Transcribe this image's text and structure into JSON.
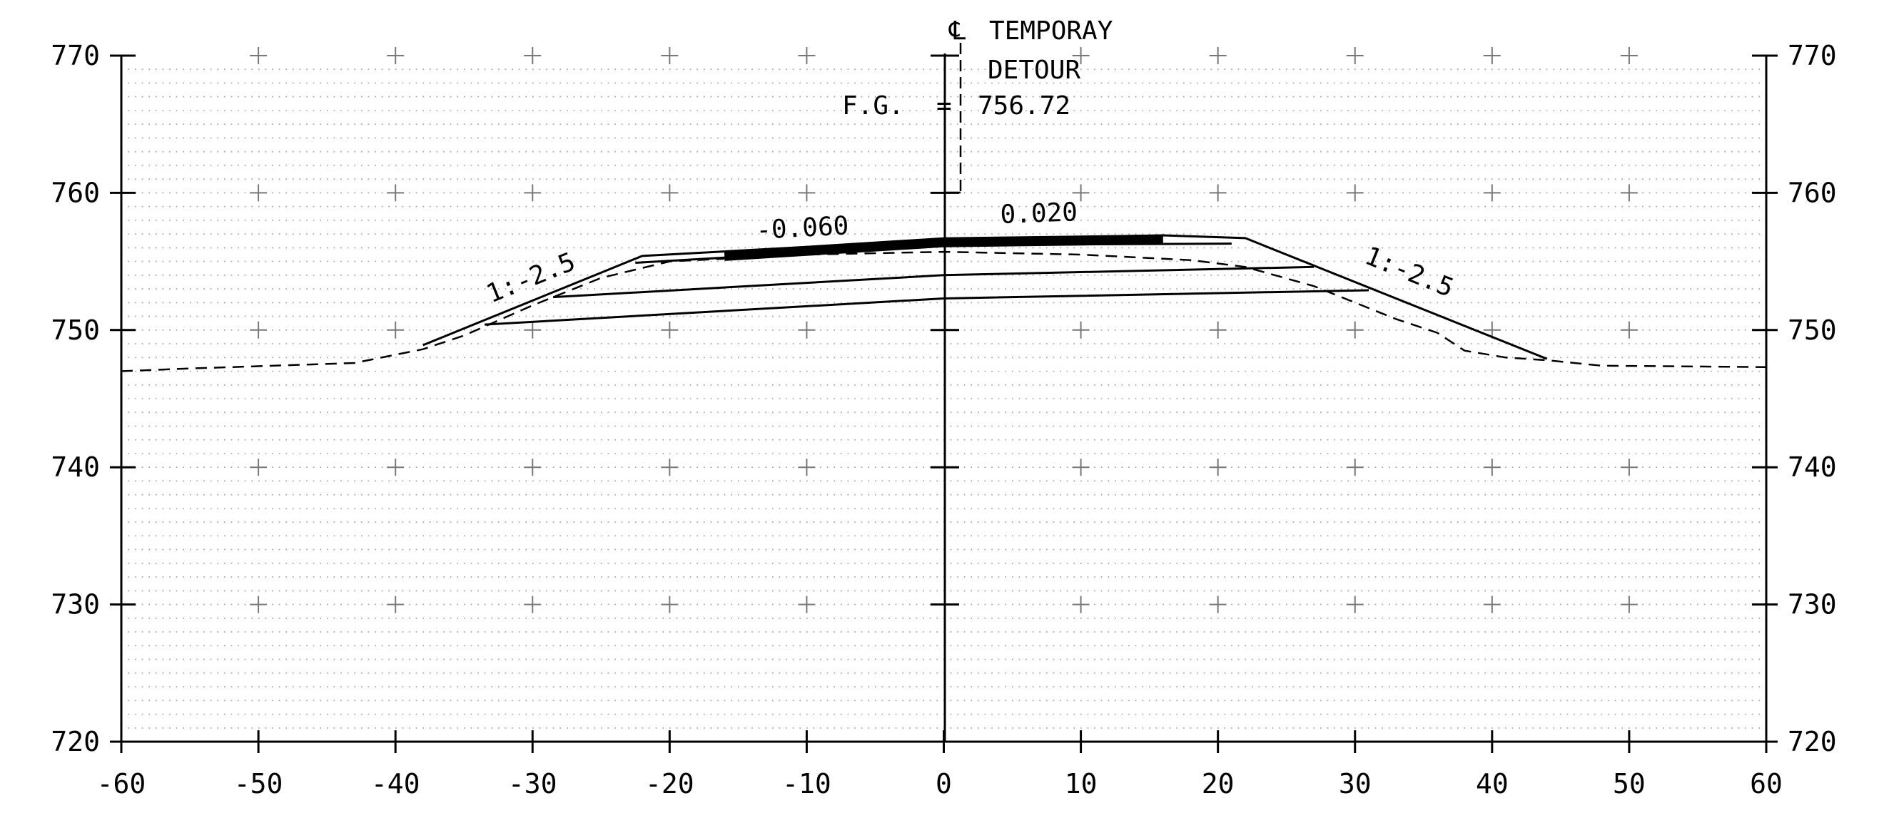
{
  "section": {
    "centerline_symbol": "℄",
    "centerline_label_1": "TEMPORAY",
    "centerline_label_2": "DETOUR",
    "fg_label": "F.G.",
    "fg_equals": "=",
    "fg_value": "756.72",
    "slope_left": "1:-2.5",
    "slope_right": "1:-2.5",
    "cross_slope_left": "-0.060",
    "cross_slope_right": "0.020"
  },
  "axes": {
    "x_ticks": [
      -60,
      -50,
      -40,
      -30,
      -20,
      -10,
      0,
      10,
      20,
      30,
      40,
      50,
      60
    ],
    "x_tick_labels": [
      "-60",
      "-50",
      "-40",
      "-30",
      "-20",
      "-10",
      "0",
      "10",
      "20",
      "30",
      "40",
      "50",
      "60"
    ],
    "y_ticks": [
      720,
      730,
      740,
      750,
      760,
      770
    ],
    "y_tick_labels": [
      "720",
      "730",
      "740",
      "750",
      "760",
      "770"
    ],
    "xlim": [
      -60,
      60
    ],
    "ylim": [
      720,
      770
    ],
    "grid": "dotted with crosses at major intersections"
  },
  "geometry": {
    "finished_grade": [
      [
        -38,
        748.9
      ],
      [
        -22,
        755.4
      ],
      [
        0,
        756.6
      ],
      [
        16,
        756.9
      ],
      [
        22,
        756.7
      ],
      [
        44,
        747.9
      ]
    ],
    "subgrade_1": [
      [
        -33.5,
        750.4
      ],
      [
        0,
        752.3
      ],
      [
        31,
        752.9
      ]
    ],
    "subgrade_2": [
      [
        -28.5,
        752.4
      ],
      [
        0,
        754.0
      ],
      [
        27,
        754.6
      ]
    ],
    "subgrade_3": [
      [
        -22.5,
        754.9
      ],
      [
        0,
        756.2
      ],
      [
        21,
        756.3
      ]
    ],
    "pavement": [
      [
        -16,
        755.4
      ],
      [
        0,
        756.4
      ],
      [
        16,
        756.6
      ]
    ],
    "existing_ground": [
      [
        -60,
        747.0
      ],
      [
        -55,
        747.2
      ],
      [
        -43,
        747.6
      ],
      [
        -38,
        748.6
      ],
      [
        -35,
        749.6
      ],
      [
        -30,
        751.8
      ],
      [
        -25,
        753.8
      ],
      [
        -20,
        755.0
      ],
      [
        -10,
        755.5
      ],
      [
        0,
        755.7
      ],
      [
        10,
        755.5
      ],
      [
        18,
        755.1
      ],
      [
        22,
        754.6
      ],
      [
        27,
        753.2
      ],
      [
        30,
        752.0
      ],
      [
        33,
        750.8
      ],
      [
        36,
        749.8
      ],
      [
        38,
        748.5
      ],
      [
        41,
        748.0
      ],
      [
        44,
        747.8
      ],
      [
        48,
        747.4
      ],
      [
        60,
        747.3
      ]
    ],
    "centerline_x": 0
  }
}
